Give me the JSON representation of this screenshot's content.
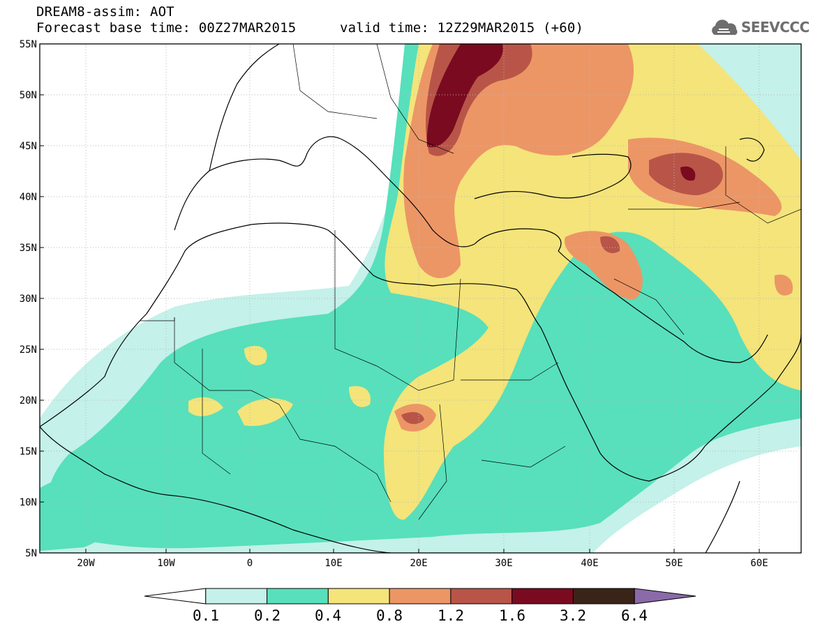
{
  "header": {
    "line1": "DREAM8-assim: AOT",
    "line2": "Forecast base time: 00Z27MAR2015",
    "line3": "valid time: 12Z29MAR2015 (+60)"
  },
  "logo": {
    "text": "SEEVCCC",
    "icon": "cloud-icon"
  },
  "axes": {
    "lon_labels": [
      "20W",
      "10W",
      "0",
      "10E",
      "20E",
      "30E",
      "40E",
      "50E",
      "60E"
    ],
    "lat_labels": [
      "55N",
      "50N",
      "45N",
      "40N",
      "35N",
      "30N",
      "25N",
      "20N",
      "15N",
      "10N",
      "5N"
    ],
    "lon_range": [
      -25,
      65
    ],
    "lat_range": [
      5,
      55
    ]
  },
  "legend": {
    "labels": [
      "0.1",
      "0.2",
      "0.4",
      "0.8",
      "1.2",
      "1.6",
      "3.2",
      "6.4"
    ],
    "colors": [
      "#ffffff",
      "#c4f1e9",
      "#57e0bb",
      "#f4e47a",
      "#ec9666",
      "#b85548",
      "#7a0a20",
      "#3a2418",
      "#8a6aa8"
    ]
  }
}
